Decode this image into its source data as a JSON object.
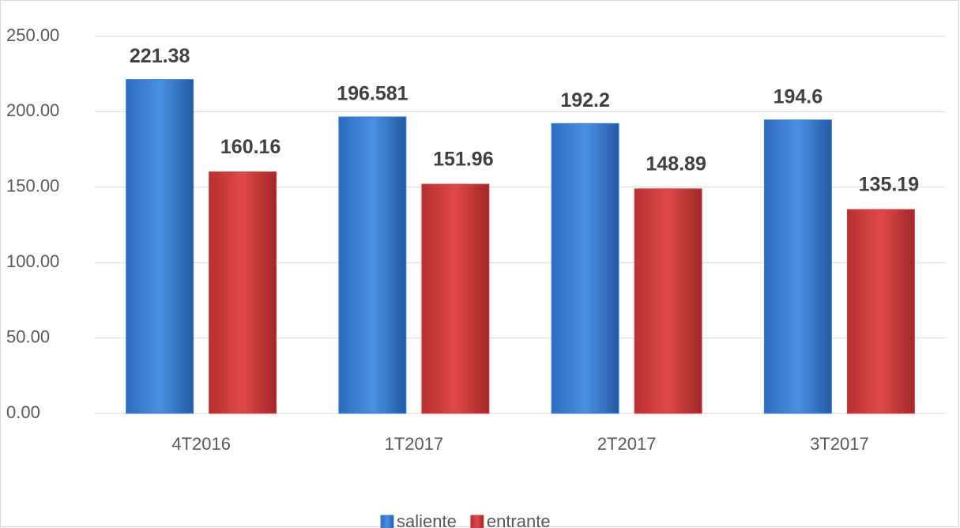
{
  "chart_data": {
    "type": "bar",
    "categories": [
      "4T2016",
      "1T2017",
      "2T2017",
      "3T2017"
    ],
    "series": [
      {
        "name": "saliente",
        "color": "#3a7fd5",
        "values": [
          221.38,
          196.581,
          192.2,
          194.6
        ]
      },
      {
        "name": "entrante",
        "color": "#d23c3c",
        "values": [
          160.16,
          151.96,
          148.89,
          135.19
        ]
      }
    ],
    "ylim": [
      0,
      250
    ],
    "yticks": [
      {
        "value": 0,
        "label": "0.00"
      },
      {
        "value": 50,
        "label": "50.00"
      },
      {
        "value": 100,
        "label": "100.00"
      },
      {
        "value": 150,
        "label": "150.00"
      },
      {
        "value": 200,
        "label": "200.00"
      },
      {
        "value": 250,
        "label": "250.00"
      }
    ],
    "grid": true,
    "legend": "bottom"
  }
}
